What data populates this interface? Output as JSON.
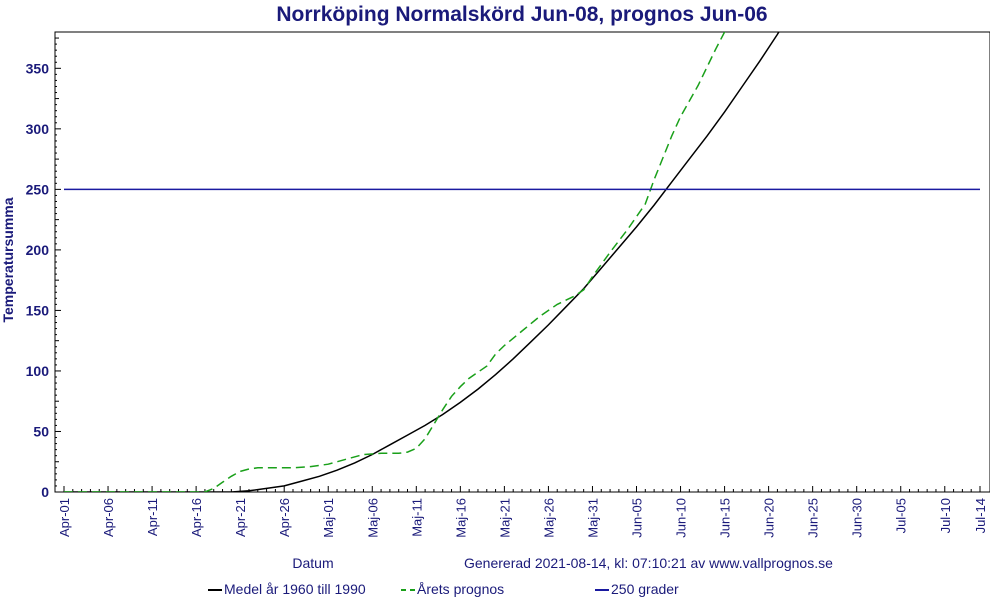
{
  "chart_data": {
    "type": "line",
    "title": "Norrköping Normalskörd Jun-08, prognos Jun-06",
    "xlabel": "Datum",
    "ylabel": "Temperatursumma",
    "generated": "Genererad 2021-08-14, kl: 07:10:21 av www.vallprognos.se",
    "ylim": [
      0,
      380
    ],
    "yticks": [
      0,
      50,
      100,
      150,
      200,
      250,
      300,
      350
    ],
    "xlim": [
      0,
      104
    ],
    "xticks": [
      {
        "x": 0,
        "label": "Apr-01"
      },
      {
        "x": 5,
        "label": "Apr-06"
      },
      {
        "x": 10,
        "label": "Apr-11"
      },
      {
        "x": 15,
        "label": "Apr-16"
      },
      {
        "x": 20,
        "label": "Apr-21"
      },
      {
        "x": 25,
        "label": "Apr-26"
      },
      {
        "x": 30,
        "label": "Maj-01"
      },
      {
        "x": 35,
        "label": "Maj-06"
      },
      {
        "x": 40,
        "label": "Maj-11"
      },
      {
        "x": 45,
        "label": "Maj-16"
      },
      {
        "x": 50,
        "label": "Maj-21"
      },
      {
        "x": 55,
        "label": "Maj-26"
      },
      {
        "x": 60,
        "label": "Maj-31"
      },
      {
        "x": 65,
        "label": "Jun-05"
      },
      {
        "x": 70,
        "label": "Jun-10"
      },
      {
        "x": 75,
        "label": "Jun-15"
      },
      {
        "x": 80,
        "label": "Jun-20"
      },
      {
        "x": 85,
        "label": "Jun-25"
      },
      {
        "x": 90,
        "label": "Jun-30"
      },
      {
        "x": 95,
        "label": "Jul-05"
      },
      {
        "x": 100,
        "label": "Jul-10"
      },
      {
        "x": 104,
        "label": "Jul-14"
      }
    ],
    "grid": false,
    "legend_position": "bottom",
    "series": [
      {
        "name": "Medel år 1960 till 1990",
        "color": "#000000",
        "style": "solid",
        "points": [
          [
            0,
            0
          ],
          [
            19,
            0
          ],
          [
            21,
            1
          ],
          [
            23,
            3
          ],
          [
            25,
            5
          ],
          [
            27,
            9
          ],
          [
            29,
            13
          ],
          [
            31,
            18
          ],
          [
            33,
            24
          ],
          [
            35,
            31
          ],
          [
            37,
            39
          ],
          [
            39,
            47
          ],
          [
            41,
            55
          ],
          [
            43,
            64
          ],
          [
            45,
            74
          ],
          [
            47,
            85
          ],
          [
            49,
            97
          ],
          [
            51,
            110
          ],
          [
            53,
            124
          ],
          [
            55,
            138
          ],
          [
            57,
            153
          ],
          [
            59,
            168
          ],
          [
            61,
            185
          ],
          [
            63,
            202
          ],
          [
            65,
            219
          ],
          [
            67,
            237
          ],
          [
            69,
            256
          ],
          [
            71,
            275
          ],
          [
            73,
            294
          ],
          [
            75,
            314
          ],
          [
            77,
            335
          ],
          [
            79,
            356
          ],
          [
            81,
            378
          ],
          [
            82,
            390
          ]
        ]
      },
      {
        "name": "Årets prognos",
        "color": "#1aa01a",
        "style": "dashed",
        "points": [
          [
            0,
            0
          ],
          [
            16,
            0
          ],
          [
            17,
            3
          ],
          [
            18,
            8
          ],
          [
            19,
            13
          ],
          [
            20,
            17
          ],
          [
            21,
            19
          ],
          [
            22,
            20
          ],
          [
            26,
            20
          ],
          [
            28,
            21
          ],
          [
            30,
            23
          ],
          [
            32,
            27
          ],
          [
            34,
            31
          ],
          [
            36,
            32
          ],
          [
            38,
            32
          ],
          [
            39,
            33
          ],
          [
            40,
            36
          ],
          [
            41,
            44
          ],
          [
            42,
            56
          ],
          [
            43,
            68
          ],
          [
            44,
            79
          ],
          [
            45,
            87
          ],
          [
            46,
            94
          ],
          [
            48,
            104
          ],
          [
            49,
            114
          ],
          [
            50,
            121
          ],
          [
            52,
            133
          ],
          [
            54,
            145
          ],
          [
            56,
            155
          ],
          [
            58,
            162
          ],
          [
            59,
            167
          ],
          [
            60,
            178
          ],
          [
            62,
            198
          ],
          [
            64,
            217
          ],
          [
            66,
            238
          ],
          [
            67,
            258
          ],
          [
            68,
            276
          ],
          [
            69,
            294
          ],
          [
            70,
            310
          ],
          [
            72,
            336
          ],
          [
            74,
            366
          ],
          [
            75,
            380
          ],
          [
            76,
            395
          ]
        ]
      },
      {
        "name": "250 grader",
        "color": "#1a1aa0",
        "style": "solid",
        "points": [
          [
            0,
            250
          ],
          [
            104,
            250
          ]
        ]
      }
    ]
  }
}
